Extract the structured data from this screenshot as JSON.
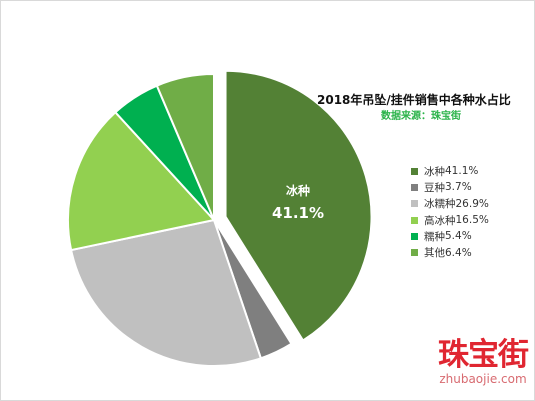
{
  "chart_data": {
    "type": "pie",
    "title": "2018年吊坠/挂件销售中各种水占比",
    "subtitle": "数据来源：珠宝街",
    "categories": [
      "冰种",
      "豆种",
      "冰糯种",
      "高冰种",
      "糯种",
      "其他"
    ],
    "values": [
      41.1,
      3.7,
      26.9,
      16.5,
      5.4,
      6.4
    ],
    "value_labels": [
      "41.1%",
      "3.7%",
      "26.9%",
      "16.5%",
      "5.4%",
      "6.4%"
    ],
    "colors": [
      "#538135",
      "#7f7f7f",
      "#c0c0c0",
      "#92d050",
      "#00b050",
      "#70ad47"
    ],
    "exploded_slice": "冰种",
    "data_label": {
      "category": "冰种",
      "value": "41.1%"
    },
    "legend_position": "right"
  },
  "watermark": {
    "brand": "珠宝街",
    "url": "zhubaojie.com"
  }
}
